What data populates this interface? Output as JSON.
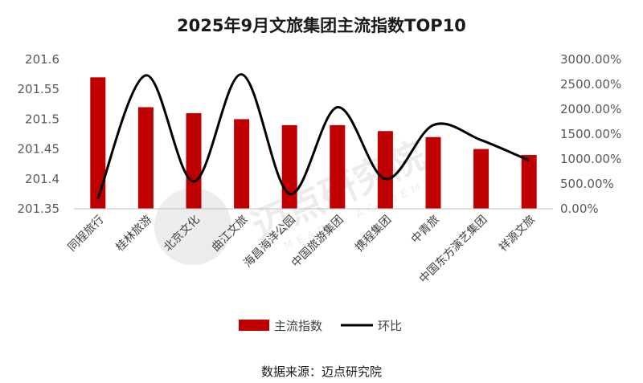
{
  "chart_data": {
    "type": "bar",
    "title": "2025年9月文旅集团主流指数TOP10",
    "categories": [
      "同程旅行",
      "桂林旅游",
      "北京文化",
      "曲江文旅",
      "海昌海洋公园",
      "中国旅游集团",
      "携程集团",
      "中青旅",
      "中国东方演艺集团",
      "祥源文旅"
    ],
    "series": [
      {
        "name": "主流指数",
        "type": "bar",
        "axis": "left",
        "color": "#C00000",
        "values": [
          201.57,
          201.52,
          201.51,
          201.5,
          201.49,
          201.49,
          201.48,
          201.47,
          201.45,
          201.44
        ]
      },
      {
        "name": "环比",
        "type": "line",
        "axis": "right",
        "color": "#000000",
        "values": [
          200,
          2680,
          550,
          2700,
          300,
          2040,
          600,
          1680,
          1380,
          970
        ]
      }
    ],
    "y_left": {
      "min": 201.35,
      "max": 201.6,
      "ticks": [
        "201.35",
        "201.4",
        "201.45",
        "201.5",
        "201.55",
        "201.6"
      ]
    },
    "y_right": {
      "min": 0,
      "max": 3000,
      "ticks": [
        "0.00%",
        "500.00%",
        "1000.00%",
        "1500.00%",
        "2000.00%",
        "2500.00%",
        "3000.00%"
      ]
    },
    "grid": false,
    "legend_position": "bottom"
  },
  "source": "数据来源：迈点研究院",
  "watermark": {
    "text": "迈点研究院",
    "sub": "MEADIN ACADEMY"
  }
}
